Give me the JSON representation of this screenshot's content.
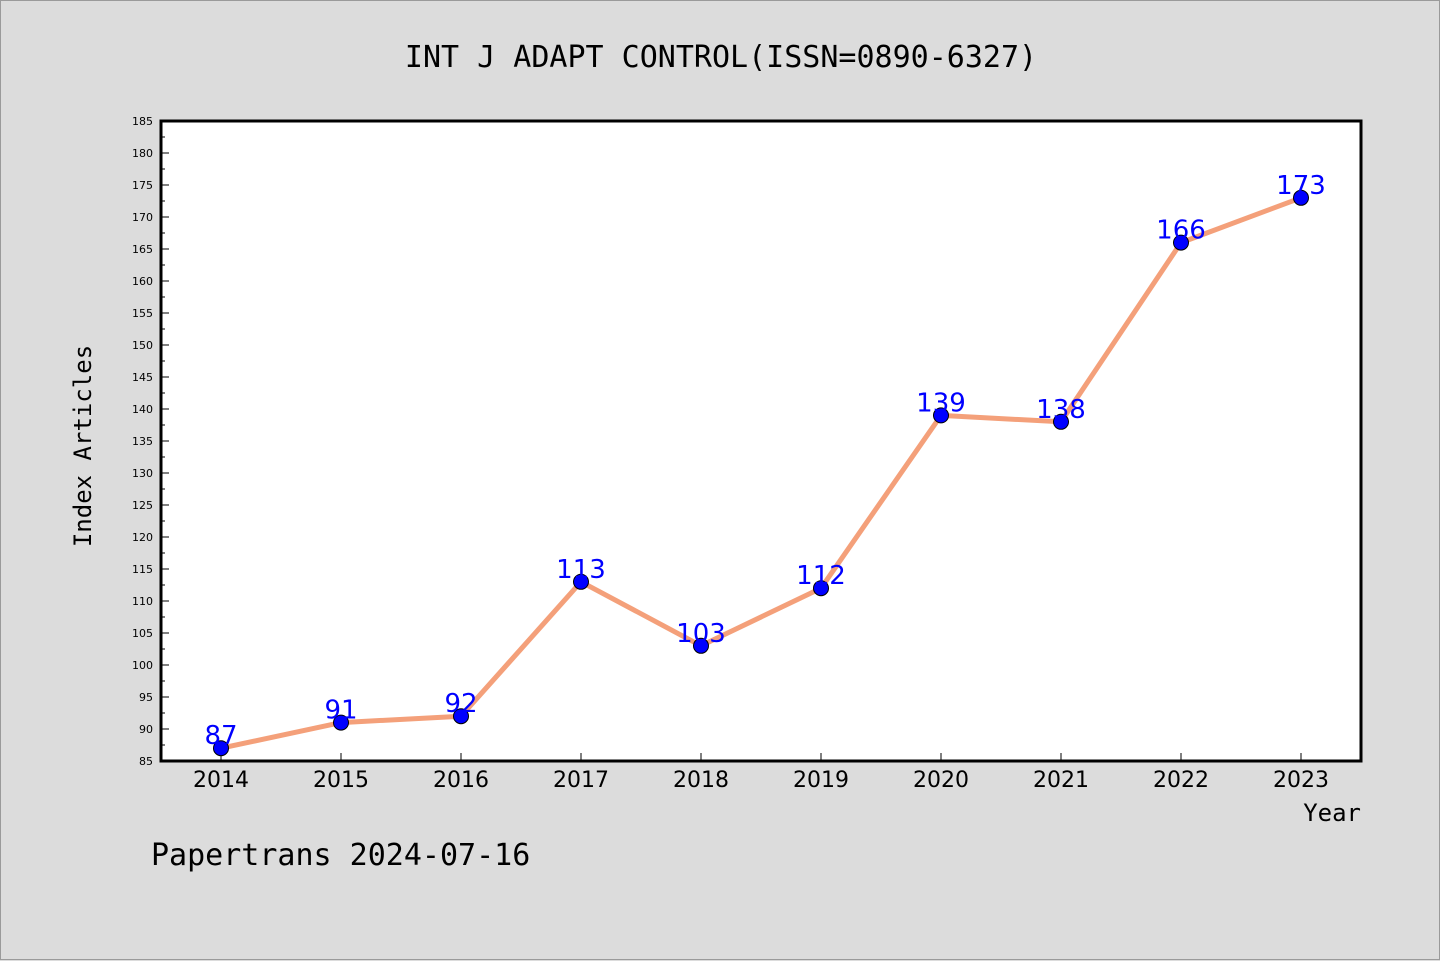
{
  "chart_data": {
    "type": "line",
    "title": "INT J ADAPT CONTROL(ISSN=0890-6327)",
    "xlabel": "Year",
    "ylabel": "Index Articles",
    "categories": [
      "2014",
      "2015",
      "2016",
      "2017",
      "2018",
      "2019",
      "2020",
      "2021",
      "2022",
      "2023"
    ],
    "series": [
      {
        "values": [
          87,
          91,
          92,
          113,
          103,
          112,
          139,
          138,
          166,
          173
        ]
      }
    ],
    "ylim": [
      85,
      185
    ],
    "ytick_step": 5,
    "grid": false,
    "colors": {
      "line": "#f4a07a",
      "marker": "#0000ff",
      "label": "#0000ff"
    }
  },
  "footer": {
    "text": "Papertrans 2024-07-16"
  }
}
